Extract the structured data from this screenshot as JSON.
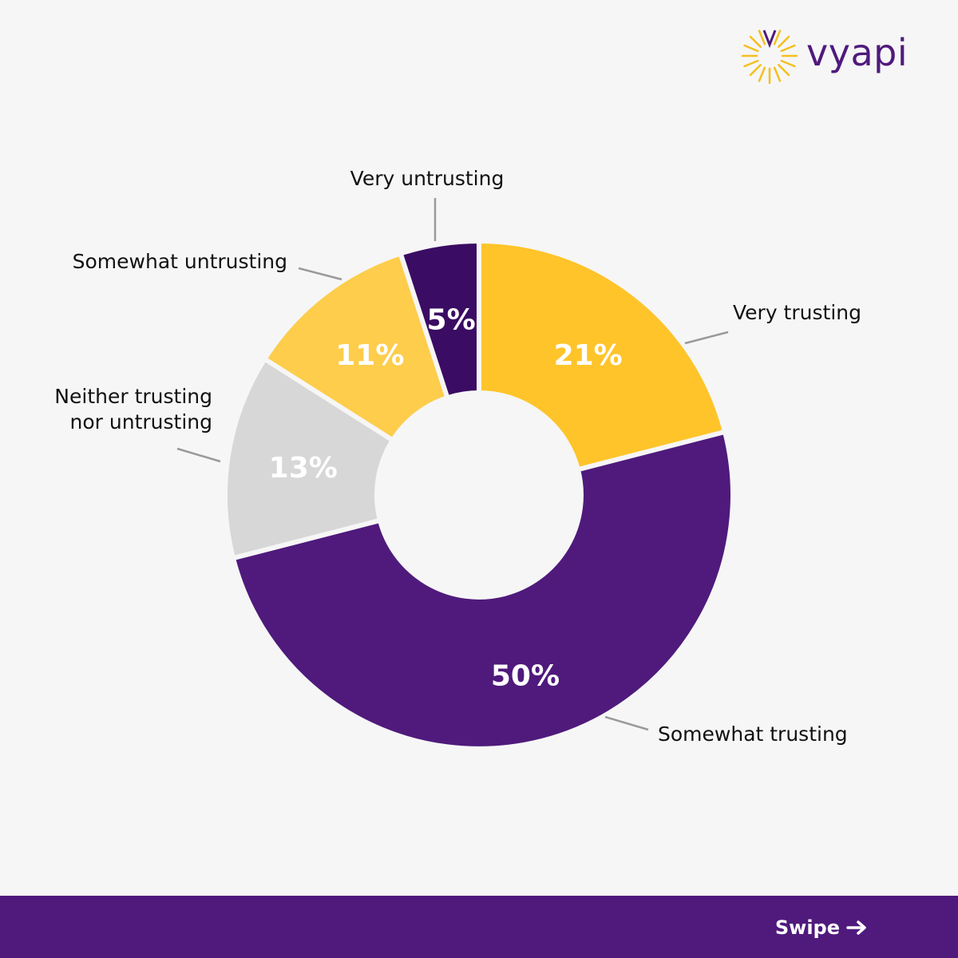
{
  "brand": {
    "name": "vyapi",
    "color": "#4f1a7c",
    "accent": "#f4c01e"
  },
  "chart_data": {
    "type": "pie",
    "title": "",
    "donut": true,
    "slices": [
      {
        "label": "Very trusting",
        "value": 21,
        "value_text": "21%",
        "color": "#fec42a"
      },
      {
        "label": "Somewhat trusting",
        "value": 50,
        "value_text": "50%",
        "color": "#4f1a7c"
      },
      {
        "label": "Neither trusting nor untrusting",
        "lines": [
          "Neither trusting",
          "nor untrusting"
        ],
        "value": 13,
        "value_text": "13%",
        "color": "#d7d7d7"
      },
      {
        "label": "Somewhat untrusting",
        "value": 11,
        "value_text": "11%",
        "color": "#fdcd4b"
      },
      {
        "label": "Very untrusting",
        "value": 5,
        "value_text": "5%",
        "color": "#3a0c63"
      }
    ]
  },
  "footer": {
    "swipe_label": "Swipe"
  }
}
